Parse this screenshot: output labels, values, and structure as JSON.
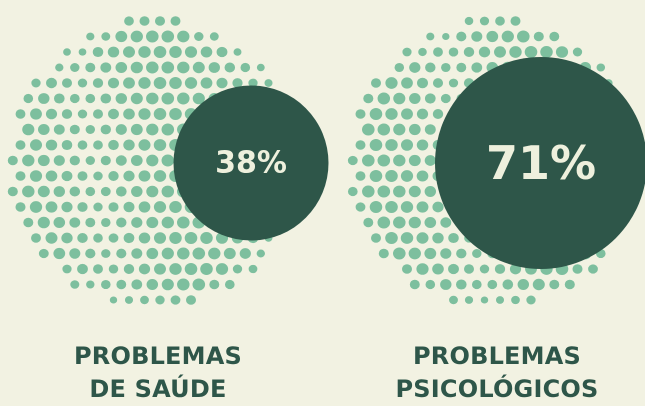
{
  "chart_data": {
    "type": "proportional-circle",
    "items": [
      {
        "value": 38,
        "value_label": "38%",
        "label_lines": [
          "PROBLEMAS",
          "DE SAÚDE"
        ]
      },
      {
        "value": 71,
        "value_label": "71%",
        "label_lines": [
          "PROBLEMAS",
          "PSICOLÓGICOS"
        ]
      }
    ]
  },
  "colors": {
    "background": "#f2f2e2",
    "dots": "#7dbf9e",
    "circle": "#2e5649",
    "text": "#2e5649",
    "value_text": "#eef0dd"
  }
}
